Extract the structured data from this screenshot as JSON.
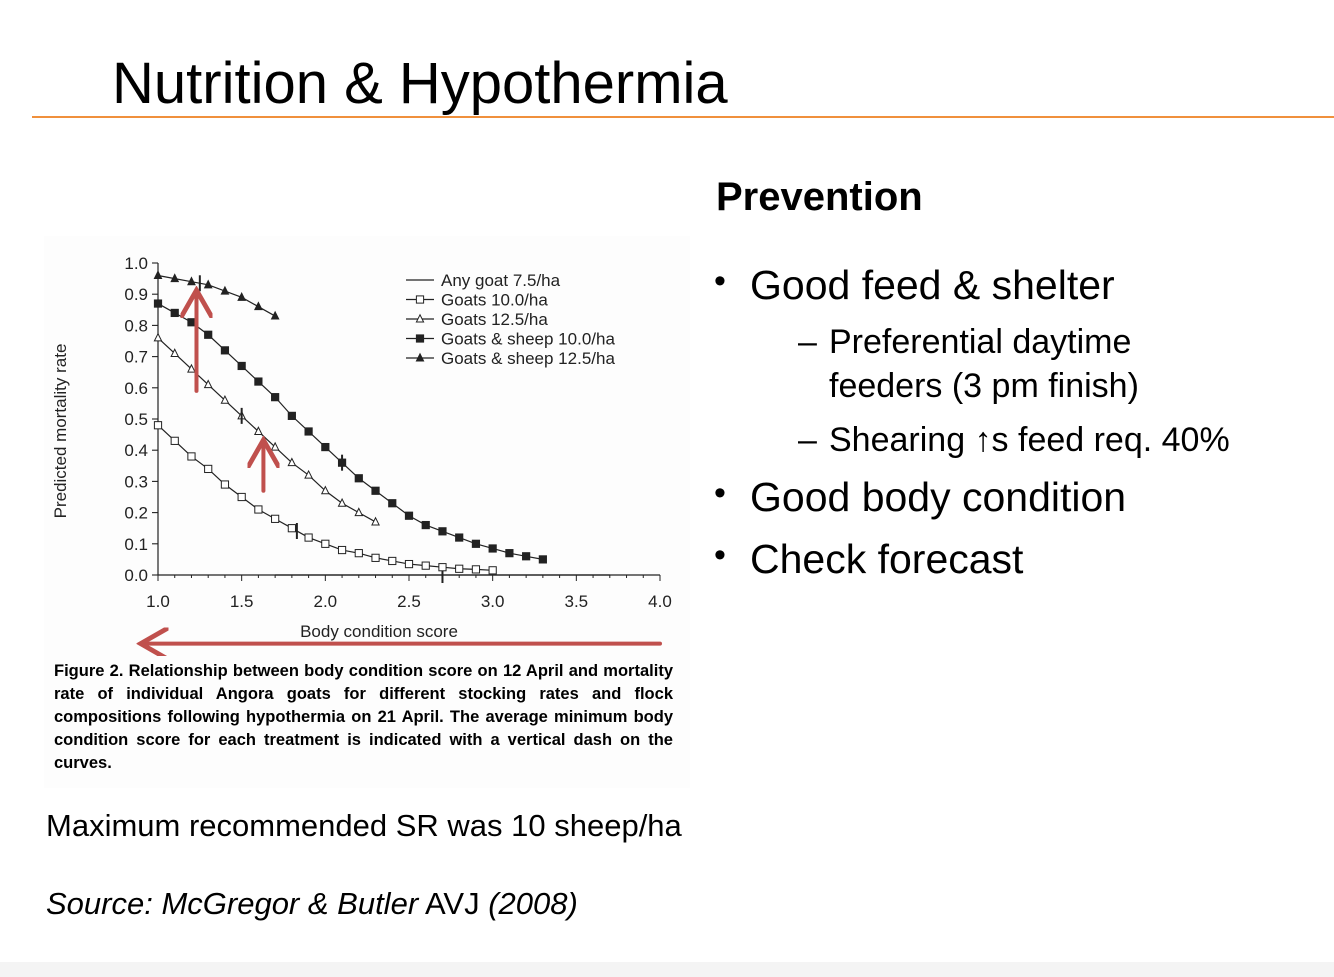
{
  "slide": {
    "title": "Nutrition & Hypothermia",
    "accent_color": "#f0903c",
    "prevention_heading": "Prevention",
    "bullets": [
      {
        "text": "Good feed & shelter",
        "subs": [
          "Preferential daytime",
          "feeders (3 pm finish)",
          "Shearing ↑s feed req. 40%"
        ]
      },
      {
        "text": "Good body condition",
        "subs": []
      },
      {
        "text": "Check forecast",
        "subs": []
      }
    ],
    "bullet_glyph": "•",
    "sub_glyph": "–",
    "note": "Maximum recommended SR was 10 sheep/ha",
    "source": {
      "italic_part": "Source: McGregor & Butler",
      "plain_part": " AVJ ",
      "year": "(2008)"
    },
    "figure_caption": "Figure 2. Relationship between body condition score on 12 April and mortality rate of individual Angora goats for different stocking rates and flock compositions following hypothermia on 21 April. The average minimum body condition score for each treatment is indicated with a vertical dash on the curves."
  },
  "chart_data": {
    "type": "line",
    "xlabel": "Body condition score",
    "ylabel": "Predicted mortality rate",
    "xlim": [
      1.0,
      4.0
    ],
    "ylim": [
      0.0,
      1.0
    ],
    "xticks": [
      "1.0",
      "1.5",
      "2.0",
      "2.5",
      "3.0",
      "3.5",
      "4.0"
    ],
    "yticks": [
      "0.0",
      "0.1",
      "0.2",
      "0.3",
      "0.4",
      "0.5",
      "0.6",
      "0.7",
      "0.8",
      "0.9",
      "1.0"
    ],
    "arrow_color": "#c0504d",
    "series": [
      {
        "name": "Any goat 7.5/ha",
        "marker": "none",
        "min_bcs": 2.7,
        "x": [
          1.7,
          3.7
        ],
        "y": [
          0.0,
          0.0
        ]
      },
      {
        "name": "Goats 10.0/ha",
        "marker": "square-open",
        "min_bcs": 1.83,
        "x": [
          1.0,
          1.1,
          1.2,
          1.3,
          1.4,
          1.5,
          1.6,
          1.7,
          1.8,
          1.9,
          2.0,
          2.1,
          2.2,
          2.3,
          2.4,
          2.5,
          2.6,
          2.7,
          2.8,
          2.9,
          3.0
        ],
        "y": [
          0.48,
          0.43,
          0.38,
          0.34,
          0.29,
          0.25,
          0.21,
          0.18,
          0.15,
          0.12,
          0.1,
          0.08,
          0.07,
          0.055,
          0.045,
          0.035,
          0.03,
          0.025,
          0.02,
          0.018,
          0.015
        ]
      },
      {
        "name": "Goats 12.5/ha",
        "marker": "triangle-open",
        "min_bcs": 1.5,
        "x": [
          1.0,
          1.1,
          1.2,
          1.3,
          1.4,
          1.5,
          1.6,
          1.7,
          1.8,
          1.9,
          2.0,
          2.1,
          2.2,
          2.3
        ],
        "y": [
          0.76,
          0.71,
          0.66,
          0.61,
          0.56,
          0.51,
          0.46,
          0.41,
          0.36,
          0.32,
          0.27,
          0.23,
          0.2,
          0.17
        ]
      },
      {
        "name": "Goats & sheep 10.0/ha",
        "marker": "square-filled",
        "min_bcs": 2.1,
        "x": [
          1.0,
          1.1,
          1.2,
          1.3,
          1.4,
          1.5,
          1.6,
          1.7,
          1.8,
          1.9,
          2.0,
          2.1,
          2.2,
          2.3,
          2.4,
          2.5,
          2.6,
          2.7,
          2.8,
          2.9,
          3.0,
          3.1,
          3.2,
          3.3
        ],
        "y": [
          0.87,
          0.84,
          0.81,
          0.77,
          0.72,
          0.67,
          0.62,
          0.57,
          0.51,
          0.46,
          0.41,
          0.36,
          0.31,
          0.27,
          0.23,
          0.19,
          0.16,
          0.14,
          0.12,
          0.1,
          0.085,
          0.07,
          0.06,
          0.05
        ]
      },
      {
        "name": "Goats & sheep 12.5/ha",
        "marker": "triangle-filled",
        "min_bcs": 1.25,
        "x": [
          1.0,
          1.1,
          1.2,
          1.3,
          1.4,
          1.5,
          1.6,
          1.7
        ],
        "y": [
          0.96,
          0.95,
          0.94,
          0.93,
          0.91,
          0.89,
          0.86,
          0.83
        ]
      }
    ],
    "arrows": [
      {
        "from": [
          1.23,
          0.59
        ],
        "to": [
          1.23,
          0.9
        ]
      },
      {
        "from": [
          1.63,
          0.27
        ],
        "to": [
          1.63,
          0.42
        ]
      },
      {
        "from": [
          4.0,
          -0.22
        ],
        "to": [
          0.92,
          -0.22
        ]
      }
    ]
  }
}
